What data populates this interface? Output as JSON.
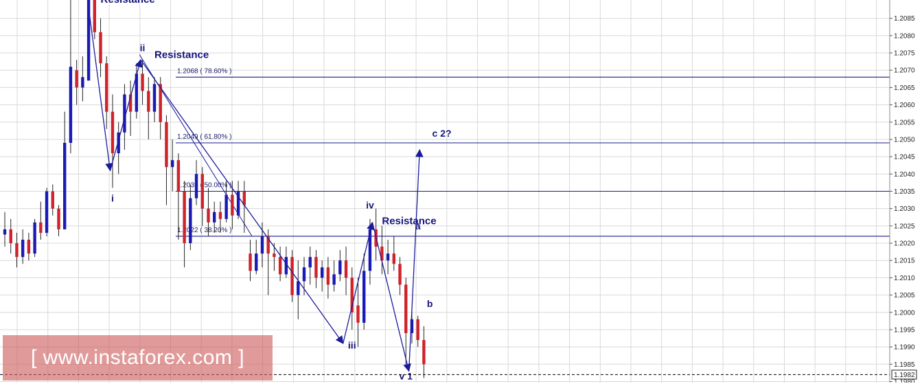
{
  "colors": {
    "background": "#ffffff",
    "grid": "#d8d8d8",
    "bull_candle": "#1a1ab4",
    "bear_candle": "#d0222a",
    "wave_lines": "#1a1a9a",
    "label_text": "#14147a",
    "current_price_line": "#000000",
    "watermark_bg": "#cd5c5c",
    "watermark_text": "#ffffff"
  },
  "chart_data": {
    "type": "candlestick",
    "title": "",
    "xlabel": "",
    "ylabel": "",
    "ylim": [
      1.19797,
      1.20903
    ],
    "grid": true,
    "y_axis_position": "right",
    "y_ticks": [
      "1.2085",
      "1.2080",
      "1.2075",
      "1.2070",
      "1.2065",
      "1.2060",
      "1.2055",
      "1.2050",
      "1.2045",
      "1.2040",
      "1.2035",
      "1.2030",
      "1.2025",
      "1.2020",
      "1.2015",
      "1.2010",
      "1.2005",
      "1.2000",
      "1.1995",
      "1.1990",
      "1.1985",
      "1.1980"
    ],
    "current_price": "1.1982",
    "fib_levels": [
      {
        "price": 1.2068,
        "label": "1.2068 ( 78.60% )"
      },
      {
        "price": 1.2049,
        "label": "1.2049 ( 61.80% )"
      },
      {
        "price": 1.2035,
        "label": "1.2035 ( 50.00% )"
      },
      {
        "price": 1.2022,
        "label": "1.2022 ( 38.20% )"
      }
    ],
    "wave_labels": [
      {
        "text": "i",
        "x": 18,
        "y": 1.2032
      },
      {
        "text": "ii",
        "x": 23,
        "y": 1.20755
      },
      {
        "text": "iii",
        "x": 58,
        "y": 1.19895
      },
      {
        "text": "iv",
        "x": 61,
        "y": 1.203
      },
      {
        "text": "v 1",
        "x": 67,
        "y": 1.19806
      },
      {
        "text": "a",
        "x": 69,
        "y": 1.2024
      },
      {
        "text": "b",
        "x": 71,
        "y": 1.20015
      },
      {
        "text": "c 2?",
        "x": 73,
        "y": 1.20508
      }
    ],
    "annotations": [
      {
        "text": "Resistance",
        "x": 16,
        "y": 1.20895
      },
      {
        "text": "Resistance",
        "x": 25,
        "y": 1.20735
      },
      {
        "text": "Resistance",
        "x": 63,
        "y": 1.20255
      }
    ],
    "wave_path": [
      {
        "x": 14,
        "y": 1.2088
      },
      {
        "x": 17.6,
        "y": 1.2041
      },
      {
        "x": 22.7,
        "y": 1.2073
      },
      {
        "x": 56.5,
        "y": 1.1991
      },
      {
        "x": 61.4,
        "y": 1.2026
      },
      {
        "x": 67.5,
        "y": 1.1983
      },
      {
        "x": 69.3,
        "y": 1.2047
      }
    ],
    "candles": [
      {
        "x": 0,
        "o": 1.20225,
        "h": 1.2029,
        "l": 1.2019,
        "c": 1.2024
      },
      {
        "x": 1,
        "o": 1.2024,
        "h": 1.2027,
        "l": 1.2017,
        "c": 1.202
      },
      {
        "x": 2,
        "o": 1.202,
        "h": 1.2023,
        "l": 1.2013,
        "c": 1.2016
      },
      {
        "x": 3,
        "o": 1.2016,
        "h": 1.2024,
        "l": 1.2014,
        "c": 1.2021
      },
      {
        "x": 4,
        "o": 1.2021,
        "h": 1.2023,
        "l": 1.2015,
        "c": 1.2017
      },
      {
        "x": 5,
        "o": 1.2017,
        "h": 1.2027,
        "l": 1.2016,
        "c": 1.2026
      },
      {
        "x": 6,
        "o": 1.2026,
        "h": 1.2032,
        "l": 1.2021,
        "c": 1.2023
      },
      {
        "x": 7,
        "o": 1.2023,
        "h": 1.2036,
        "l": 1.2022,
        "c": 1.2035
      },
      {
        "x": 8,
        "o": 1.2035,
        "h": 1.2037,
        "l": 1.2028,
        "c": 1.203
      },
      {
        "x": 9,
        "o": 1.203,
        "h": 1.2031,
        "l": 1.2022,
        "c": 1.2024
      },
      {
        "x": 10,
        "o": 1.2024,
        "h": 1.2058,
        "l": 1.2024,
        "c": 1.2049
      },
      {
        "x": 11,
        "o": 1.2049,
        "h": 1.20903,
        "l": 1.2046,
        "c": 1.2071
      },
      {
        "x": 12,
        "o": 1.207,
        "h": 1.2073,
        "l": 1.206,
        "c": 1.2065
      },
      {
        "x": 13,
        "o": 1.2065,
        "h": 1.2074,
        "l": 1.2061,
        "c": 1.2068
      },
      {
        "x": 14,
        "o": 1.2067,
        "h": 1.20903,
        "l": 1.2068,
        "c": 1.20903
      },
      {
        "x": 15,
        "o": 1.20903,
        "h": 1.20903,
        "l": 1.2079,
        "c": 1.2081
      },
      {
        "x": 16,
        "o": 1.2081,
        "h": 1.2085,
        "l": 1.2068,
        "c": 1.2072
      },
      {
        "x": 17,
        "o": 1.2072,
        "h": 1.2074,
        "l": 1.2053,
        "c": 1.2058
      },
      {
        "x": 18,
        "o": 1.2058,
        "h": 1.2063,
        "l": 1.2036,
        "c": 1.2046
      },
      {
        "x": 19,
        "o": 1.2046,
        "h": 1.2055,
        "l": 1.204,
        "c": 1.2052
      },
      {
        "x": 20,
        "o": 1.2052,
        "h": 1.2066,
        "l": 1.2047,
        "c": 1.2063
      },
      {
        "x": 21,
        "o": 1.2063,
        "h": 1.2067,
        "l": 1.2051,
        "c": 1.2058
      },
      {
        "x": 22,
        "o": 1.2058,
        "h": 1.2072,
        "l": 1.2056,
        "c": 1.2069
      },
      {
        "x": 23,
        "o": 1.2069,
        "h": 1.2073,
        "l": 1.206,
        "c": 1.2064
      },
      {
        "x": 24,
        "o": 1.2064,
        "h": 1.2068,
        "l": 1.205,
        "c": 1.2058
      },
      {
        "x": 25,
        "o": 1.2058,
        "h": 1.2068,
        "l": 1.2055,
        "c": 1.2066
      },
      {
        "x": 26,
        "o": 1.2066,
        "h": 1.2068,
        "l": 1.205,
        "c": 1.2055
      },
      {
        "x": 27,
        "o": 1.2055,
        "h": 1.2057,
        "l": 1.2031,
        "c": 1.2042
      },
      {
        "x": 28,
        "o": 1.2042,
        "h": 1.205,
        "l": 1.2035,
        "c": 1.2044
      },
      {
        "x": 29,
        "o": 1.2044,
        "h": 1.2046,
        "l": 1.2021,
        "c": 1.2035
      },
      {
        "x": 30,
        "o": 1.2035,
        "h": 1.2038,
        "l": 1.2013,
        "c": 1.202
      },
      {
        "x": 31,
        "o": 1.202,
        "h": 1.2037,
        "l": 1.2018,
        "c": 1.2033
      },
      {
        "x": 32,
        "o": 1.2033,
        "h": 1.2044,
        "l": 1.2031,
        "c": 1.204
      },
      {
        "x": 33,
        "o": 1.204,
        "h": 1.2042,
        "l": 1.2025,
        "c": 1.203
      },
      {
        "x": 34,
        "o": 1.203,
        "h": 1.2036,
        "l": 1.2022,
        "c": 1.2026
      },
      {
        "x": 35,
        "o": 1.2026,
        "h": 1.2032,
        "l": 1.2023,
        "c": 1.2029
      },
      {
        "x": 36,
        "o": 1.2029,
        "h": 1.2032,
        "l": 1.2023,
        "c": 1.2027
      },
      {
        "x": 37,
        "o": 1.2027,
        "h": 1.2038,
        "l": 1.2026,
        "c": 1.2034
      },
      {
        "x": 38,
        "o": 1.2034,
        "h": 1.2038,
        "l": 1.2024,
        "c": 1.2028
      },
      {
        "x": 39,
        "o": 1.2028,
        "h": 1.2038,
        "l": 1.2027,
        "c": 1.2035
      },
      {
        "x": 40,
        "o": 1.2035,
        "h": 1.2038,
        "l": 1.2023,
        "c": 1.2031
      },
      {
        "x": 41,
        "o": 1.2017,
        "h": 1.2021,
        "l": 1.2009,
        "c": 1.2012
      },
      {
        "x": 42,
        "o": 1.2012,
        "h": 1.2021,
        "l": 1.2011,
        "c": 1.2017
      },
      {
        "x": 43,
        "o": 1.2017,
        "h": 1.2026,
        "l": 1.2013,
        "c": 1.2022
      },
      {
        "x": 44,
        "o": 1.2022,
        "h": 1.2024,
        "l": 1.2005,
        "c": 1.2017
      },
      {
        "x": 45,
        "o": 1.2017,
        "h": 1.202,
        "l": 1.2012,
        "c": 1.2016
      },
      {
        "x": 46,
        "o": 1.2016,
        "h": 1.2019,
        "l": 1.2009,
        "c": 1.2011
      },
      {
        "x": 47,
        "o": 1.2011,
        "h": 1.2019,
        "l": 1.201,
        "c": 1.2016
      },
      {
        "x": 48,
        "o": 1.2016,
        "h": 1.2018,
        "l": 1.2003,
        "c": 1.2005
      },
      {
        "x": 49,
        "o": 1.2005,
        "h": 1.2015,
        "l": 1.1998,
        "c": 1.2009
      },
      {
        "x": 50,
        "o": 1.2009,
        "h": 1.2016,
        "l": 1.2005,
        "c": 1.2013
      },
      {
        "x": 51,
        "o": 1.2013,
        "h": 1.2019,
        "l": 1.2008,
        "c": 1.2016
      },
      {
        "x": 52,
        "o": 1.2016,
        "h": 1.2018,
        "l": 1.2007,
        "c": 1.201
      },
      {
        "x": 53,
        "o": 1.201,
        "h": 1.2015,
        "l": 1.2006,
        "c": 1.2013
      },
      {
        "x": 54,
        "o": 1.2013,
        "h": 1.2016,
        "l": 1.2004,
        "c": 1.2008
      },
      {
        "x": 55,
        "o": 1.2008,
        "h": 1.2015,
        "l": 1.2006,
        "c": 1.2011
      },
      {
        "x": 56,
        "o": 1.2011,
        "h": 1.2018,
        "l": 1.2009,
        "c": 1.2015
      },
      {
        "x": 57,
        "o": 1.2015,
        "h": 1.2019,
        "l": 1.2005,
        "c": 1.201
      },
      {
        "x": 58,
        "o": 1.201,
        "h": 1.2013,
        "l": 1.1995,
        "c": 1.2
      },
      {
        "x": 59,
        "o": 1.2002,
        "h": 1.201,
        "l": 1.199,
        "c": 1.1997
      },
      {
        "x": 60,
        "o": 1.1997,
        "h": 1.2017,
        "l": 1.1995,
        "c": 1.2012
      },
      {
        "x": 61,
        "o": 1.2012,
        "h": 1.2027,
        "l": 1.2008,
        "c": 1.2024
      },
      {
        "x": 62,
        "o": 1.2024,
        "h": 1.203,
        "l": 1.2015,
        "c": 1.2019
      },
      {
        "x": 63,
        "o": 1.2019,
        "h": 1.2025,
        "l": 1.2011,
        "c": 1.2015
      },
      {
        "x": 64,
        "o": 1.2015,
        "h": 1.2021,
        "l": 1.2011,
        "c": 1.2017
      },
      {
        "x": 65,
        "o": 1.2017,
        "h": 1.2022,
        "l": 1.2012,
        "c": 1.2014
      },
      {
        "x": 66,
        "o": 1.2014,
        "h": 1.2016,
        "l": 1.2005,
        "c": 1.2008
      },
      {
        "x": 67,
        "o": 1.2008,
        "h": 1.201,
        "l": 1.1985,
        "c": 1.1994
      },
      {
        "x": 68,
        "o": 1.1994,
        "h": 1.2001,
        "l": 1.1991,
        "c": 1.1998
      },
      {
        "x": 69,
        "o": 1.1998,
        "h": 1.1999,
        "l": 1.199,
        "c": 1.1992
      },
      {
        "x": 70,
        "o": 1.1992,
        "h": 1.1996,
        "l": 1.1981,
        "c": 1.1985
      }
    ]
  },
  "watermark": {
    "text": "[ www.instaforex.com ]"
  }
}
